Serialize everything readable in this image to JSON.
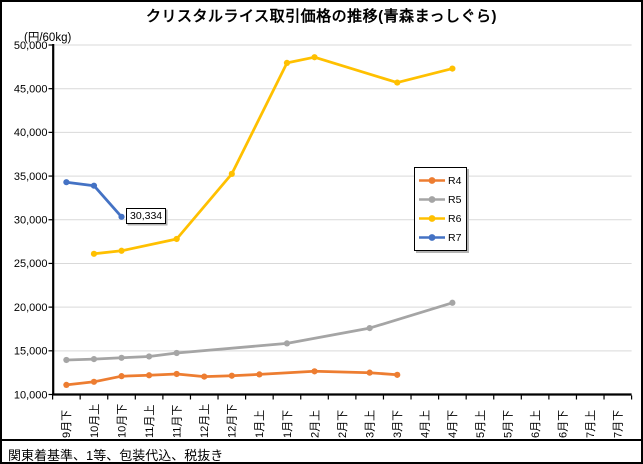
{
  "title": "クリスタルライス取引価格の推移(青森まっしぐら)",
  "unit_label": "(円/60kg)",
  "note": "関東着基準、1等、包装代込、税抜き",
  "chart_data": {
    "type": "line",
    "title": "クリスタルライス取引価格の推移(青森まっしぐら)",
    "ylabel": "(円/60kg)",
    "xlabel": "",
    "ylim": [
      10000,
      50000
    ],
    "y_step": 5000,
    "grid": true,
    "x_label_rotation": -90,
    "legend_position": "middle-right",
    "y_tick_labels": [
      "10,000",
      "15,000",
      "20,000",
      "25,000",
      "30,000",
      "35,000",
      "40,000",
      "45,000",
      "50,000"
    ],
    "categories": [
      "9月下",
      "10月上",
      "10月下",
      "11月上",
      "11月下",
      "12月上",
      "12月下",
      "1月上",
      "1月下",
      "2月上",
      "2月下",
      "3月上",
      "3月下",
      "4月上",
      "4月下",
      "5月上",
      "5月下",
      "6月上",
      "6月下",
      "7月上",
      "7月下"
    ],
    "series": [
      {
        "name": "R4",
        "color": "#ED7D31",
        "values": [
          11100,
          11450,
          12100,
          12200,
          12350,
          12050,
          12150,
          12300,
          null,
          12650,
          null,
          12500,
          12250,
          null,
          null,
          null,
          null,
          null,
          null,
          null,
          null
        ]
      },
      {
        "name": "R5",
        "color": "#A5A5A5",
        "values": [
          13950,
          14050,
          14200,
          14350,
          14750,
          null,
          null,
          null,
          15850,
          null,
          null,
          17600,
          null,
          null,
          20500,
          null,
          null,
          null,
          null,
          null,
          null
        ]
      },
      {
        "name": "R6",
        "color": "#FFC000",
        "values": [
          null,
          26100,
          26450,
          null,
          27800,
          null,
          35250,
          null,
          47950,
          48600,
          null,
          null,
          45700,
          null,
          47300,
          null,
          null,
          null,
          null,
          null,
          null
        ]
      },
      {
        "name": "R7",
        "color": "#4472C4",
        "values": [
          34300,
          33900,
          30334,
          null,
          null,
          null,
          null,
          null,
          null,
          null,
          null,
          null,
          null,
          null,
          null,
          null,
          null,
          null,
          null,
          null,
          null
        ]
      }
    ],
    "annotation": {
      "series": "R7",
      "category": "10月下",
      "text": "30,334"
    }
  }
}
